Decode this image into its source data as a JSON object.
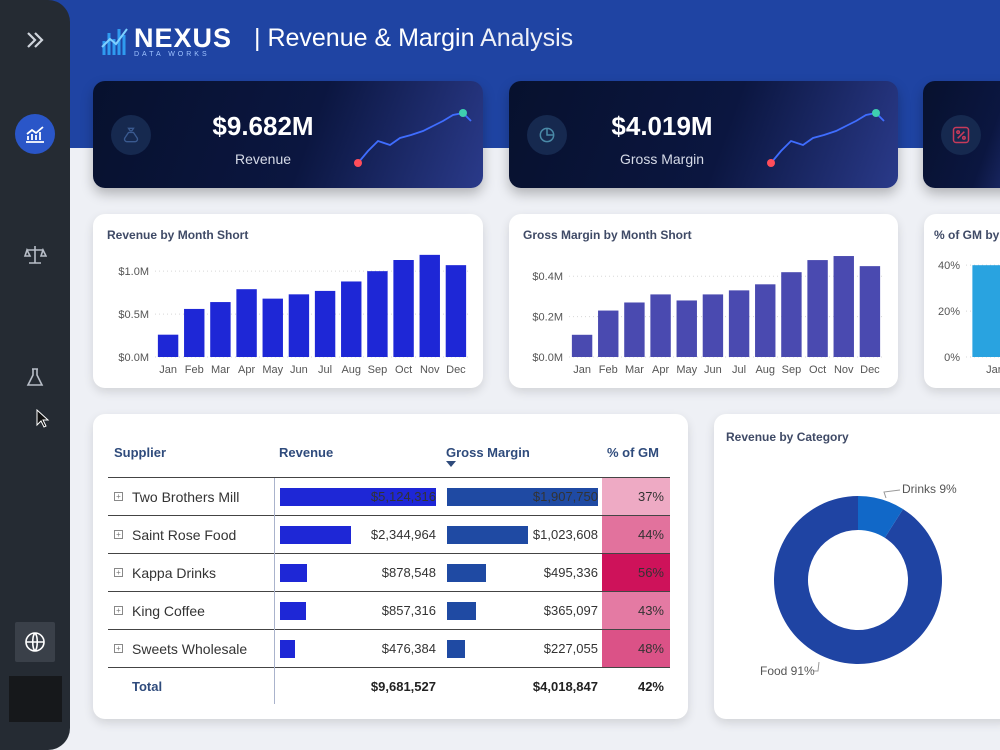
{
  "brand": {
    "name": "NEXUS",
    "subtitle": "DATA WORKS"
  },
  "page_title": {
    "strong": "| Revenue & Margin",
    "light": " Analysis"
  },
  "colors": {
    "header": "#1f44a3",
    "revenue_bar": "#1e27d6",
    "gm_bar": "#4a4ab0",
    "pct_gm_bar": "#29a3e0",
    "donut_food": "#1f44a3",
    "donut_drinks": "#1168c8"
  },
  "sidebar": {
    "icons": [
      "chevrons-right-icon",
      "line-chart-icon",
      "scales-icon",
      "flask-icon",
      "globe-icon"
    ]
  },
  "kpis": [
    {
      "value": "$9.682M",
      "label": "Revenue",
      "icon": "money-bag-icon"
    },
    {
      "value": "$4.019M",
      "label": "Gross Margin",
      "icon": "pie-chart-icon"
    },
    {
      "value": "",
      "label": "",
      "icon": "percent-icon"
    }
  ],
  "chart_data": [
    {
      "type": "bar",
      "title": "Revenue by Month Short",
      "categories": [
        "Jan",
        "Feb",
        "Mar",
        "Apr",
        "May",
        "Jun",
        "Jul",
        "Aug",
        "Sep",
        "Oct",
        "Nov",
        "Dec"
      ],
      "values": [
        0.26,
        0.56,
        0.64,
        0.79,
        0.68,
        0.73,
        0.77,
        0.88,
        1.0,
        1.13,
        1.19,
        1.07
      ],
      "ylim": [
        0,
        1.2
      ],
      "ticks": [
        "$0.0M",
        "$0.5M",
        "$1.0M"
      ],
      "tick_values": [
        0,
        0.5,
        1.0
      ]
    },
    {
      "type": "bar",
      "title": "Gross Margin by Month Short",
      "categories": [
        "Jan",
        "Feb",
        "Mar",
        "Apr",
        "May",
        "Jun",
        "Jul",
        "Aug",
        "Sep",
        "Oct",
        "Nov",
        "Dec"
      ],
      "values": [
        0.11,
        0.23,
        0.27,
        0.31,
        0.28,
        0.31,
        0.33,
        0.36,
        0.42,
        0.48,
        0.5,
        0.45
      ],
      "ylim": [
        0,
        0.52
      ],
      "ticks": [
        "$0.0M",
        "$0.2M",
        "$0.4M"
      ],
      "tick_values": [
        0,
        0.2,
        0.4
      ]
    },
    {
      "type": "bar",
      "title": "% of GM by",
      "categories": [
        "Jan"
      ],
      "values": [
        40
      ],
      "ylim": [
        0,
        44
      ],
      "ticks": [
        "0%",
        "20%",
        "40%"
      ],
      "tick_values": [
        0,
        20,
        40
      ]
    },
    {
      "type": "pie",
      "title": "Revenue by Category",
      "categories": [
        "Food",
        "Drinks"
      ],
      "values": [
        91,
        9
      ],
      "labels": [
        "Food 91%",
        "Drinks 9%"
      ]
    }
  ],
  "table": {
    "headers": {
      "supplier": "Supplier",
      "revenue": "Revenue",
      "gm": "Gross Margin",
      "pct": "% of GM"
    },
    "rows": [
      {
        "supplier": "Two Brothers Mill",
        "revenue": "$5,124,316",
        "revenue_value": 5124316,
        "gm": "$1,907,750",
        "gm_value": 1907750,
        "pct": "37%",
        "pct_value": 37
      },
      {
        "supplier": "Saint Rose Food",
        "revenue": "$2,344,964",
        "revenue_value": 2344964,
        "gm": "$1,023,608",
        "gm_value": 1023608,
        "pct": "44%",
        "pct_value": 44
      },
      {
        "supplier": "Kappa Drinks",
        "revenue": "$878,548",
        "revenue_value": 878548,
        "gm": "$495,336",
        "gm_value": 495336,
        "pct": "56%",
        "pct_value": 56
      },
      {
        "supplier": "King Coffee",
        "revenue": "$857,316",
        "revenue_value": 857316,
        "gm": "$365,097",
        "gm_value": 365097,
        "pct": "43%",
        "pct_value": 43
      },
      {
        "supplier": "Sweets Wholesale",
        "revenue": "$476,384",
        "revenue_value": 476384,
        "gm": "$227,055",
        "gm_value": 227055,
        "pct": "48%",
        "pct_value": 48
      }
    ],
    "total": {
      "label": "Total",
      "revenue": "$9,681,527",
      "gm": "$4,018,847",
      "pct": "42%"
    }
  }
}
